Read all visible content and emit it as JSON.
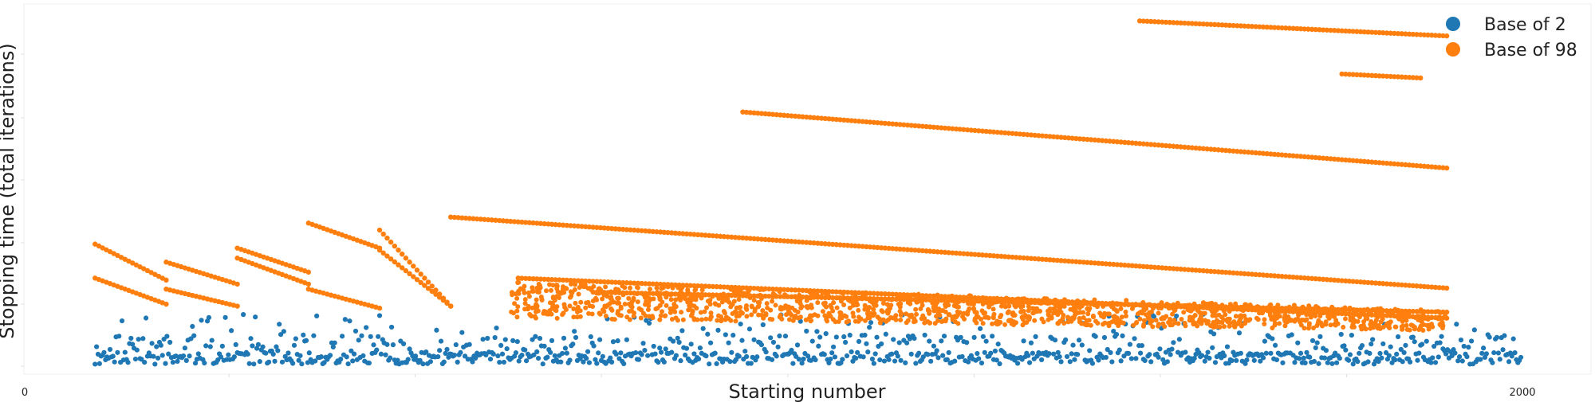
{
  "chart_data": {
    "type": "scatter",
    "xlabel": "Starting number",
    "ylabel": "Stopping time (total iterations)",
    "xlim": [
      0,
      2000
    ],
    "ylim": [
      0,
      350
    ],
    "x_ticks": [
      {
        "value": 0,
        "label": "0"
      },
      {
        "value": 2000,
        "label": "2000"
      }
    ],
    "grid": false,
    "legend_position": "top-right",
    "series": [
      {
        "name": "Base of 2",
        "color": "#1f77b4",
        "description_rule": "scatter",
        "x_start": 95,
        "x_end": 2000,
        "x_step": 2,
        "y_min": 0,
        "y_max": 55
      },
      {
        "name": "Base of 98",
        "color": "#ff7f0e",
        "segments": [
          {
            "x": [
              95,
              190
            ],
            "y": [
              122,
              86
            ]
          },
          {
            "x": [
              95,
              190
            ],
            "y": [
              88,
              62
            ]
          },
          {
            "x": [
              190,
              285
            ],
            "y": [
              104,
              82
            ]
          },
          {
            "x": [
              190,
              285
            ],
            "y": [
              77,
              60
            ]
          },
          {
            "x": [
              285,
              380
            ],
            "y": [
              118,
              94
            ]
          },
          {
            "x": [
              285,
              380
            ],
            "y": [
              108,
              82
            ]
          },
          {
            "x": [
              380,
              475
            ],
            "y": [
              143,
              118
            ]
          },
          {
            "x": [
              380,
              475
            ],
            "y": [
              77,
              58
            ]
          },
          {
            "x": [
              475,
              570
            ],
            "y": [
              136,
              60
            ]
          },
          {
            "x": [
              475,
              570
            ],
            "y": [
              116,
              60
            ]
          },
          {
            "x": [
              570,
              1900
            ],
            "y": [
              149,
              78
            ]
          },
          {
            "x": [
              660,
              1900
            ],
            "y": [
              88,
              48
            ]
          },
          {
            "x": [
              760,
              1900
            ],
            "y": [
              74,
              54
            ]
          },
          {
            "x": [
              960,
              1900
            ],
            "y": [
              254,
              198
            ]
          },
          {
            "x": [
              1490,
              1900
            ],
            "y": [
              345,
              330
            ]
          },
          {
            "x": [
              1760,
              1865
            ],
            "y": [
              292,
              288
            ]
          }
        ]
      }
    ]
  }
}
